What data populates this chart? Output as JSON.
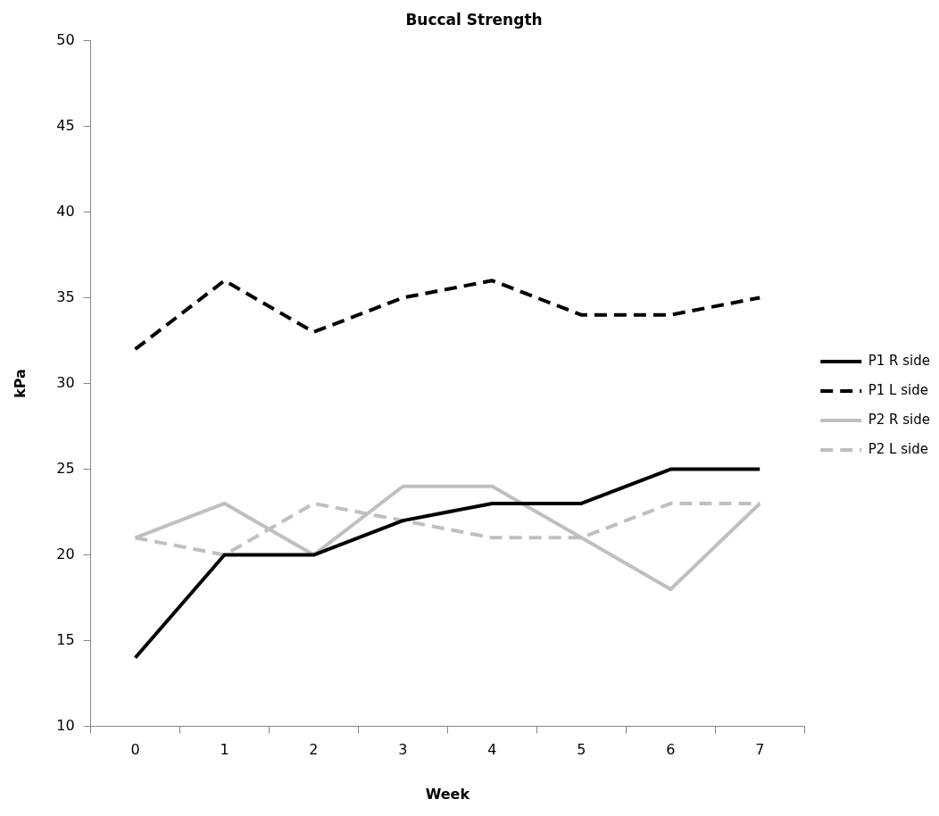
{
  "chart_data": {
    "type": "line",
    "title": "Buccal Strength",
    "xlabel": "Week",
    "ylabel": "kPa",
    "categories": [
      "0",
      "1",
      "2",
      "3",
      "4",
      "5",
      "6",
      "7"
    ],
    "ylim": [
      10,
      50
    ],
    "yticks": [
      10,
      15,
      20,
      25,
      30,
      35,
      40,
      45,
      50
    ],
    "grid": false,
    "legend": "right",
    "marker": "none",
    "series": [
      {
        "name": "P1 R side",
        "color": "#000000",
        "line_style": "solid",
        "values": [
          14,
          20,
          20,
          22,
          23,
          23,
          25,
          25
        ]
      },
      {
        "name": "P1 L side",
        "color": "#000000",
        "line_style": "dashed",
        "values": [
          32,
          36,
          33,
          35,
          36,
          34,
          34,
          35
        ]
      },
      {
        "name": "P2 R side",
        "color": "#bfbfbf",
        "line_style": "solid",
        "values": [
          21,
          23,
          20,
          24,
          24,
          21,
          18,
          23
        ]
      },
      {
        "name": "P2 L side",
        "color": "#bfbfbf",
        "line_style": "dashed",
        "values": [
          21,
          20,
          23,
          22,
          21,
          21,
          23,
          23
        ]
      }
    ]
  }
}
